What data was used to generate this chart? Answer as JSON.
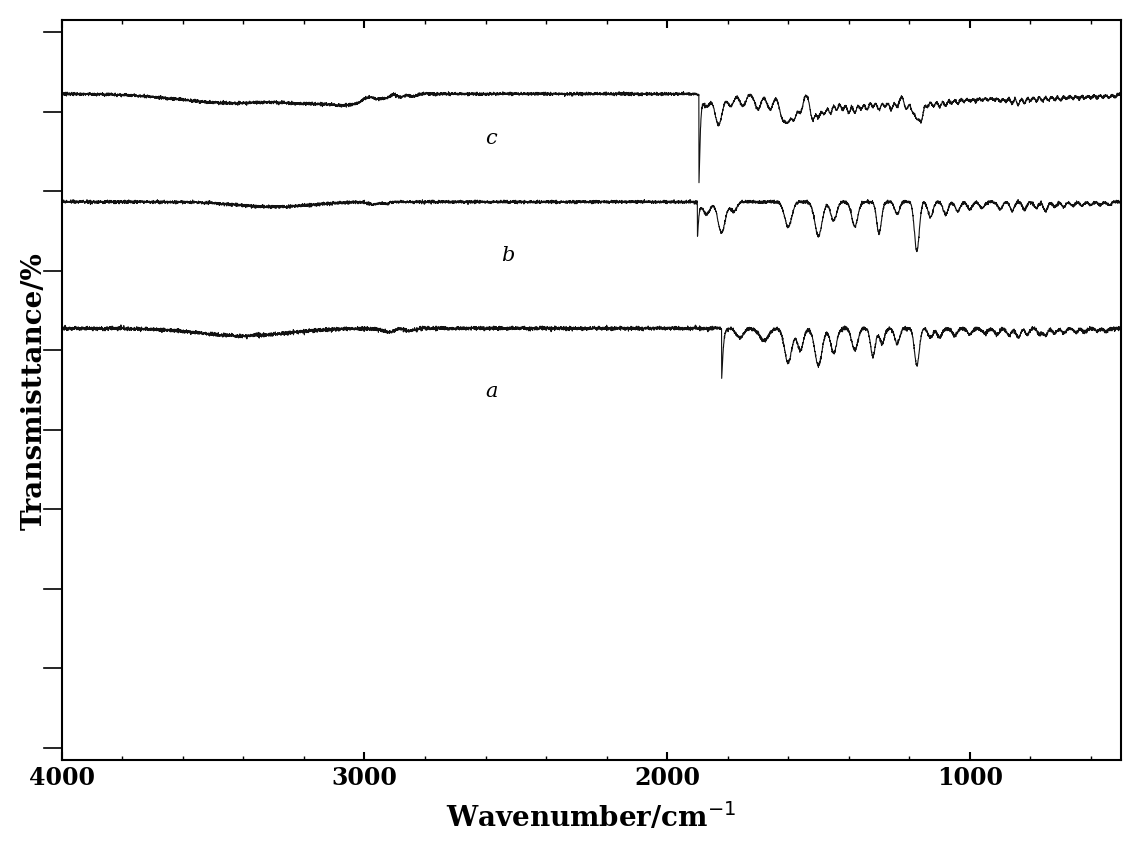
{
  "ylabel": "Transmisttance/%",
  "xlabel": "Wavenumber/cm$^{-1}$",
  "xlim_left": 4000,
  "xlim_right": 500,
  "xticks": [
    4000,
    3000,
    2000,
    1000
  ],
  "xticklabels": [
    "4000",
    "3000",
    "2000",
    "1000"
  ],
  "ylim": [
    -0.15,
    1.05
  ],
  "background_color": "#ffffff",
  "line_color": "#111111",
  "label_a": "a",
  "label_b": "b",
  "label_c": "c",
  "label_fontsize": 15,
  "axis_label_fontsize": 20,
  "tick_fontsize": 17,
  "seed": 12345
}
